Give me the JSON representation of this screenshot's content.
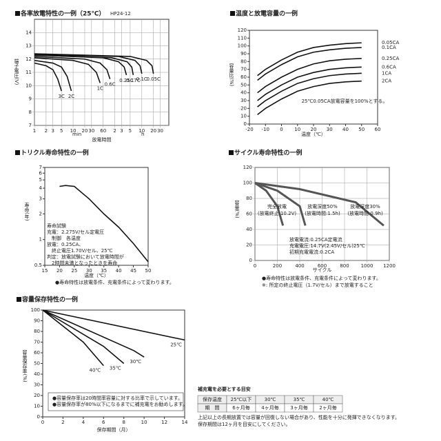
{
  "chart_data": [
    {
      "type": "line",
      "title": "各率放電特性の一例（25℃）",
      "subtitle": "HP24-12",
      "x_log": true,
      "grid": true,
      "y_label": "端子電圧(V)",
      "x_label": "放電時間",
      "x_units": [
        "min",
        "h"
      ],
      "xlim": [
        1,
        3000
      ],
      "xticks": [
        1,
        2,
        3,
        5,
        10,
        20,
        30,
        60,
        {
          "value": 120,
          "label": "2"
        },
        {
          "value": 180,
          "label": "3"
        },
        {
          "value": 300,
          "label": "5"
        },
        {
          "value": 600,
          "label": "10"
        },
        {
          "value": 1200,
          "label": "20"
        },
        {
          "value": 1800,
          "label": "30"
        }
      ],
      "ylim": [
        7,
        15
      ],
      "yticks": [
        7,
        8,
        9,
        10,
        11,
        12,
        13,
        14
      ],
      "series": [
        {
          "name": "3C",
          "color": "#111",
          "x": [
            1,
            2,
            3,
            4,
            5
          ],
          "values": [
            11.7,
            11.5,
            11.2,
            10.5,
            9.6
          ]
        },
        {
          "name": "2C",
          "color": "#111",
          "x": [
            1,
            3,
            5,
            7,
            9
          ],
          "values": [
            11.9,
            11.7,
            11.4,
            10.7,
            9.6
          ]
        },
        {
          "name": "1C",
          "color": "#111",
          "x": [
            1,
            10,
            25,
            40,
            50
          ],
          "values": [
            12.1,
            11.9,
            11.6,
            11,
            10.2
          ]
        },
        {
          "name": "0.6C",
          "color": "#111",
          "x": [
            1,
            20,
            50,
            75,
            90
          ],
          "values": [
            12.2,
            12,
            11.7,
            11.2,
            10.5
          ]
        },
        {
          "name": "0.25C",
          "color": "#111",
          "x": [
            1,
            60,
            150,
            210,
            240
          ],
          "values": [
            12.3,
            12.1,
            11.8,
            11.4,
            10.8
          ]
        },
        {
          "name": "0.17C",
          "color": "#111",
          "x": [
            1,
            100,
            250,
            330,
            360
          ],
          "values": [
            12.3,
            12.1,
            11.8,
            11.4,
            10.8
          ]
        },
        {
          "name": "0.1C",
          "color": "#111",
          "x": [
            1,
            150,
            400,
            540,
            600
          ],
          "values": [
            12.35,
            12.2,
            11.9,
            11.5,
            10.9
          ]
        },
        {
          "name": "0.05C",
          "color": "#111",
          "x": [
            1,
            300,
            800,
            1100,
            1200
          ],
          "values": [
            12.4,
            12.2,
            11.9,
            11.5,
            10.9
          ]
        }
      ]
    },
    {
      "type": "line",
      "title": "温度と放電容量の一例",
      "grid": false,
      "y_label": "容量比(%)",
      "x_label": "温度（℃）",
      "xlim": [
        -20,
        60
      ],
      "xticks": [
        -20,
        -10,
        0,
        10,
        20,
        30,
        40,
        50,
        60
      ],
      "ylim": [
        0,
        120
      ],
      "yticks": [
        0,
        10,
        20,
        30,
        40,
        50,
        60,
        70,
        80,
        90,
        100,
        110,
        120
      ],
      "annotation": "25℃0.05CA放電容量を100%とする。",
      "series": [
        {
          "name": "0.05CA",
          "color": "#111",
          "x": [
            -15,
            -10,
            0,
            10,
            20,
            30,
            40,
            50
          ],
          "values": [
            62,
            70,
            82,
            92,
            98,
            101,
            103,
            104
          ]
        },
        {
          "name": "0.1CA",
          "color": "#111",
          "x": [
            -15,
            -10,
            0,
            10,
            20,
            30,
            40,
            50
          ],
          "values": [
            56,
            64,
            76,
            86,
            92,
            95,
            97,
            98
          ]
        },
        {
          "name": "0.25CA",
          "color": "#111",
          "x": [
            -15,
            -10,
            0,
            10,
            20,
            30,
            40,
            50
          ],
          "values": [
            40,
            48,
            60,
            70,
            77,
            81,
            83,
            84
          ]
        },
        {
          "name": "0.6CA",
          "color": "#111",
          "x": [
            -15,
            -10,
            0,
            10,
            20,
            30,
            40,
            50
          ],
          "values": [
            30,
            38,
            50,
            60,
            66,
            70,
            72,
            73
          ]
        },
        {
          "name": "1CA",
          "color": "#111",
          "x": [
            -15,
            -10,
            0,
            10,
            20,
            30,
            40,
            50
          ],
          "values": [
            22,
            30,
            42,
            52,
            58,
            62,
            64,
            65
          ]
        },
        {
          "name": "2CA",
          "color": "#111",
          "x": [
            -15,
            -10,
            0,
            10,
            20,
            30,
            40,
            50
          ],
          "values": [
            12,
            20,
            32,
            42,
            48,
            52,
            54,
            55
          ]
        }
      ]
    },
    {
      "type": "line",
      "title": "トリクル寿命特性の一例",
      "grid": false,
      "y_log": true,
      "y_label": "寿命(年)",
      "x_label": "温度（℃）",
      "xlim": [
        15,
        50
      ],
      "xticks": [
        15,
        20,
        25,
        30,
        35,
        40,
        45,
        50
      ],
      "ylim": [
        0.5,
        7
      ],
      "yticks": [
        0.5,
        1,
        2,
        3,
        4,
        5,
        6,
        7
      ],
      "notes": [
        "寿命試験",
        "充電：2.275V/セル定電圧",
        "　制御　各温度",
        "放電：0.25CA、",
        "　終止電圧1.70V/セル、25℃",
        "判定：放電試験において放電時間が",
        "　2時間未満となったときを寿命"
      ],
      "footnotes": [
        "●寿命特性は放電条件、充電条件によって変わります。"
      ],
      "series": [
        {
          "name": "",
          "color": "#111",
          "x": [
            20,
            22,
            25,
            30,
            35,
            40,
            45,
            50
          ],
          "values": [
            4.2,
            4.3,
            4.2,
            3,
            2,
            1.4,
            0.9,
            0.55
          ]
        }
      ]
    },
    {
      "type": "line",
      "title": "サイクル寿命特性の一例",
      "grid": true,
      "y_label": "容量(%)",
      "x_label": "サイクル",
      "xlim": [
        0,
        1200
      ],
      "xticks": [
        0,
        200,
        400,
        600,
        800,
        1000,
        1200
      ],
      "ylim": [
        0,
        120
      ],
      "yticks": [
        0,
        20,
        40,
        60,
        80,
        100,
        120
      ],
      "notes": [
        "放電電流:0.25CA定電流",
        "充電電圧:14.7V(2.45V/セル)25℃",
        "初期充電電流:0.2CA"
      ],
      "footnotes": [
        "●寿命特性は放電条件、充電条件によって変わります。",
        "※: 所定の終止電圧（1.7V/セル）まで放電すること"
      ],
      "series": [
        {
          "name": "完全放電",
          "sub": "(放電終止:10.2V)",
          "color": "#555",
          "x": [
            0,
            100,
            200,
            250
          ],
          "values": [
            100,
            90,
            70,
            45
          ]
        },
        {
          "name": "放電深度50%",
          "sub": "(放電時間:1.5h)",
          "color": "#555",
          "x": [
            0,
            200,
            400,
            450
          ],
          "values": [
            100,
            90,
            70,
            45
          ]
        },
        {
          "name": "放電深度30%",
          "sub": "(放電時間:0.9h)",
          "color": "#555",
          "x": [
            0,
            400,
            900,
            1150
          ],
          "values": [
            100,
            92,
            75,
            45
          ]
        }
      ]
    },
    {
      "type": "line",
      "title": "容量保存特性の一例",
      "grid": false,
      "y_label": "容量保存率(%)",
      "x_label": "保存期間（月）",
      "xlim": [
        0,
        14
      ],
      "xticks": [
        0,
        2,
        4,
        6,
        8,
        10,
        12,
        14
      ],
      "ylim": [
        0,
        100
      ],
      "yticks": [
        0,
        10,
        20,
        30,
        40,
        50,
        60,
        70,
        80,
        90,
        100
      ],
      "notes": [
        "●容量保存率は20時間率容量に対する比率で示しています。",
        "●容量保存率が80%以下になるまでに補充電をお勧めします。"
      ],
      "series": [
        {
          "name": "40℃",
          "color": "#111",
          "x": [
            0,
            4,
            6
          ],
          "values": [
            100,
            70,
            48
          ]
        },
        {
          "name": "35℃",
          "color": "#111",
          "x": [
            0,
            6,
            8
          ],
          "values": [
            100,
            66,
            50
          ]
        },
        {
          "name": "30℃",
          "color": "#111",
          "x": [
            0,
            9,
            10
          ],
          "values": [
            100,
            62,
            56
          ]
        },
        {
          "name": "25℃",
          "color": "#111",
          "x": [
            0,
            14
          ],
          "values": [
            100,
            72
          ]
        }
      ]
    }
  ],
  "table": {
    "title": "補充電を必要とする目安",
    "rows": [
      [
        "保存温度",
        "25℃以下",
        "30℃",
        "35℃",
        "40℃"
      ],
      [
        "期　間",
        "6ヶ月毎",
        "4ヶ月毎",
        "3ヶ月毎",
        "2ヶ月毎"
      ]
    ],
    "notes": [
      "上記以上の長期放置では容量が回復しない場合があり、性能を十分に発揮できなくなります。",
      "保存期間は12ヶ月を目安にしてください。"
    ]
  }
}
